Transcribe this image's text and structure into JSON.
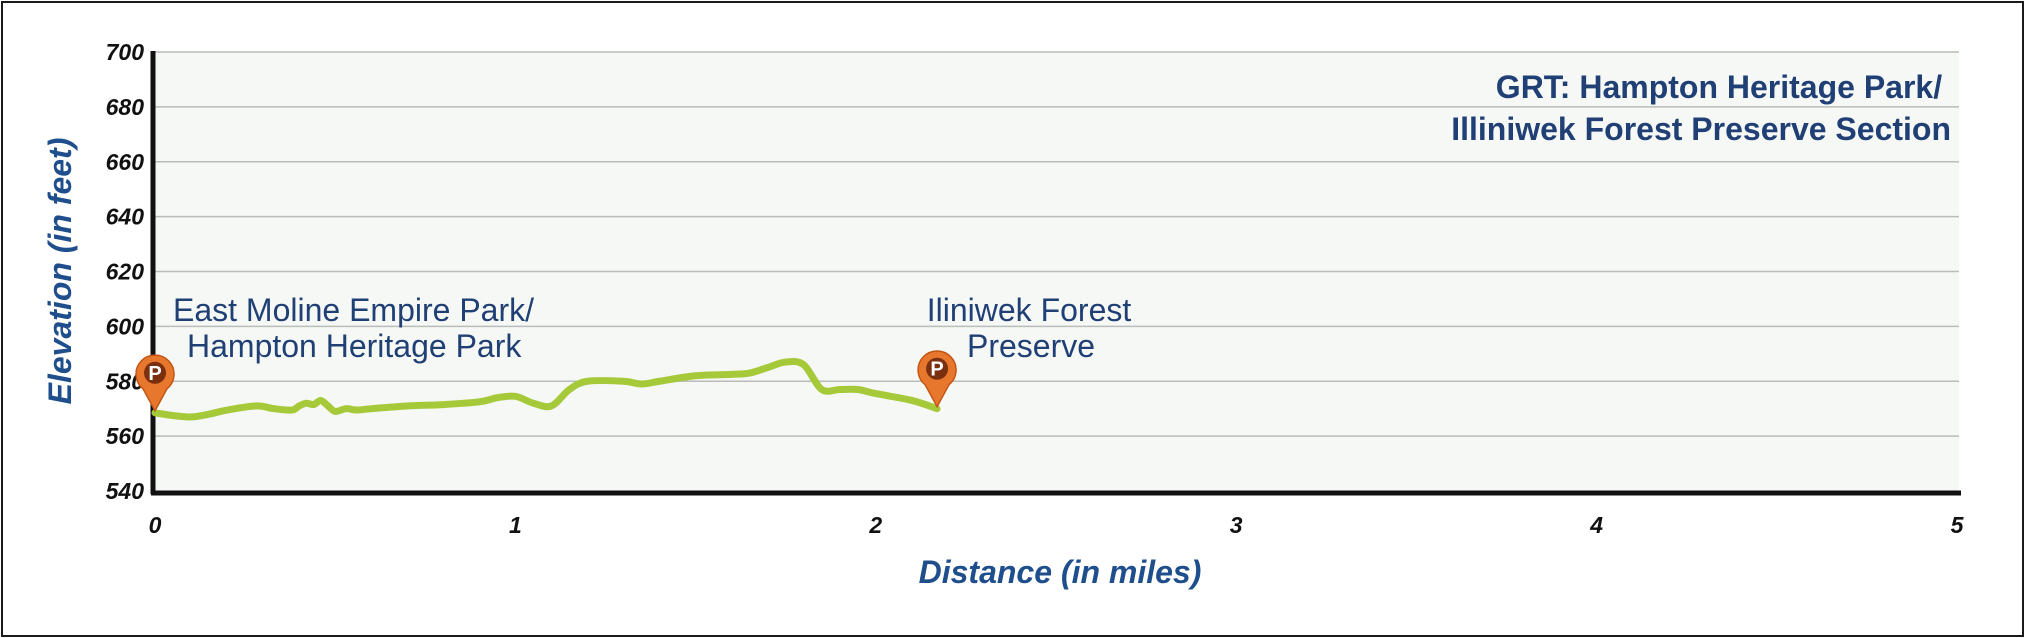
{
  "chart_data": {
    "type": "line",
    "title_lines": [
      "GRT: Hampton Heritage Park/",
      "Illiniwek Forest Preserve Section"
    ],
    "xlabel": "Distance (in miles)",
    "ylabel": "Elevation (in feet)",
    "xlim": [
      0,
      5
    ],
    "ylim": [
      540,
      700
    ],
    "x_ticks": [
      "0",
      "1",
      "2",
      "3",
      "4",
      "5"
    ],
    "y_ticks": [
      "540",
      "560",
      "580",
      "600",
      "620",
      "640",
      "660",
      "680",
      "700"
    ],
    "grid": "horizontal",
    "line_color": "#a6c93a",
    "marker_color": "#e8772e",
    "series": [
      {
        "x": [
          0,
          0.05,
          0.1,
          0.15,
          0.2,
          0.28,
          0.33,
          0.38,
          0.4,
          0.42,
          0.44,
          0.46,
          0.48,
          0.5,
          0.53,
          0.56,
          0.6,
          0.7,
          0.8,
          0.9,
          0.95,
          1.0,
          1.05,
          1.1,
          1.15,
          1.2,
          1.3,
          1.35,
          1.4,
          1.5,
          1.6,
          1.65,
          1.7,
          1.75,
          1.8,
          1.85,
          1.9,
          1.95,
          2.0,
          2.1,
          2.17
        ],
        "y": [
          568.5,
          567.5,
          567,
          568,
          569.5,
          571,
          570,
          569.5,
          571,
          572,
          571.5,
          573,
          571,
          569,
          570,
          569.5,
          570,
          571,
          571.5,
          572.5,
          574,
          574.5,
          572,
          571,
          577,
          580,
          580,
          579,
          580,
          582,
          582.5,
          583,
          585,
          587,
          586,
          577,
          577,
          577,
          575.5,
          573,
          570
        ]
      }
    ],
    "annotations": [
      {
        "x": 0.0,
        "y": 568.5,
        "marker": "P",
        "label_lines": [
          "East Moline Empire Park/",
          "Hampton Heritage Park"
        ]
      },
      {
        "x": 2.17,
        "y": 570,
        "marker": "P",
        "label_lines": [
          "Iliniwek Forest",
          "Preserve"
        ]
      }
    ]
  }
}
